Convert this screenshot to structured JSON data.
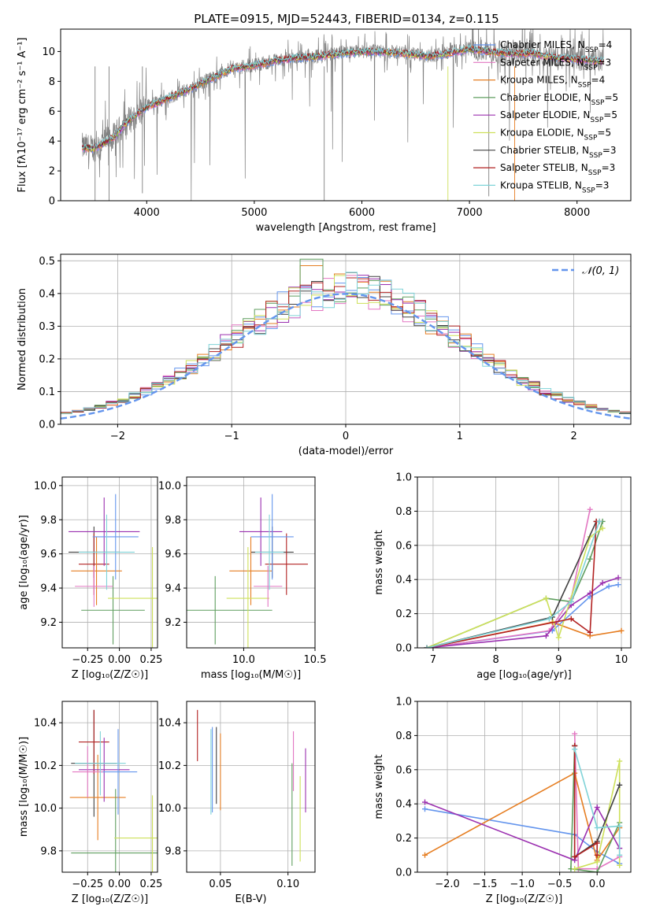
{
  "figure_title": "PLATE=0915, MJD=52443, FIBERID=0134, z=0.115",
  "colors": {
    "observed": "#808080",
    "chabrier_miles": "#6495ed",
    "salpeter_miles": "#e377c2",
    "kroupa_miles": "#e67e22",
    "chabrier_elodie": "#5f9e5f",
    "salpeter_elodie": "#9b30b0",
    "kroupa_elodie": "#cde05a",
    "chabrier_stelib": "#404040",
    "salpeter_stelib": "#b22222",
    "kroupa_stelib": "#7fd3d8"
  },
  "chart_data": [
    {
      "id": "spectrum",
      "type": "line",
      "xlabel": "wavelength [Angstrom, rest frame]",
      "ylabel": "Flux [fλ10⁻¹⁷ erg cm⁻² s⁻¹ A⁻¹]",
      "xlim": [
        3200,
        8500
      ],
      "ylim": [
        0,
        11.5
      ],
      "xticks": [
        "4000",
        "5000",
        "6000",
        "7000",
        "8000"
      ],
      "yticks": [
        "0",
        "2",
        "4",
        "6",
        "8",
        "10"
      ],
      "grid": false,
      "legend_position": "top-right",
      "legend": [
        "Chabrier MILES, N_SSP=4",
        "Salpeter MILES, N_SSP=3",
        "Kroupa MILES, N_SSP=4",
        "Chabrier ELODIE, N_SSP=5",
        "Salpeter ELODIE, N_SSP=5",
        "Kroupa ELODIE, N_SSP=5",
        "Chabrier STELIB, N_SSP=3",
        "Salpeter STELIB, N_SSP=3",
        "Kroupa STELIB, N_SSP=3"
      ],
      "continuum": {
        "x": [
          3400,
          3500,
          3600,
          3700,
          3800,
          3900,
          4000,
          4200,
          4400,
          4600,
          4800,
          5000,
          5200,
          5400,
          5600,
          5800,
          6000,
          6200,
          6400,
          6600,
          6800,
          7000,
          7200,
          7400,
          7600,
          7800,
          8000,
          8200
        ],
        "y": [
          3.6,
          3.5,
          3.9,
          4.3,
          5.2,
          5.8,
          6.3,
          6.9,
          7.5,
          8.2,
          8.9,
          9.1,
          9.4,
          9.6,
          9.7,
          9.9,
          10.0,
          10.0,
          9.9,
          9.7,
          9.9,
          10.2,
          10.0,
          9.9,
          9.9,
          9.6,
          9.5,
          9.4
        ]
      }
    },
    {
      "id": "residuals",
      "type": "line",
      "xlabel": "(data-model)/error",
      "ylabel": "Normed distribution",
      "xlim": [
        -2.5,
        2.5
      ],
      "ylim": [
        0,
        0.52
      ],
      "xticks": [
        "−2",
        "−1",
        "0",
        "1",
        "2"
      ],
      "yticks": [
        "0.0",
        "0.1",
        "0.2",
        "0.3",
        "0.4",
        "0.5"
      ],
      "grid": true,
      "legend_position": "top-right",
      "legend": [
        "𝒩(0, 1)"
      ],
      "histogram_bin_width": 0.1,
      "peak_values": [
        0.49,
        0.47,
        0.44,
        0.43,
        0.41,
        0.4
      ]
    },
    {
      "id": "age-vs-Z",
      "type": "scatter",
      "xlabel": "Z [log₁₀(Z/Z☉)]",
      "ylabel": "age  [log₁₀(age/yr)]",
      "xlim": [
        -0.45,
        0.3
      ],
      "ylim": [
        9.05,
        10.05
      ],
      "xticks": [
        "−0.25",
        "0.00",
        "0.25"
      ],
      "yticks": [
        "9.2",
        "9.4",
        "9.6",
        "9.8",
        "10.0"
      ],
      "grid": true,
      "points": [
        {
          "x": -0.2,
          "xerr": 0.2,
          "y": 9.61,
          "yerr": 0.15,
          "series": "chabrier_stelib"
        },
        {
          "x": -0.2,
          "xerr": 0.12,
          "y": 9.54,
          "yerr": 0.18,
          "series": "salpeter_stelib"
        },
        {
          "x": -0.18,
          "xerr": 0.2,
          "y": 9.5,
          "yerr": 0.2,
          "series": "kroupa_miles"
        },
        {
          "x": -0.12,
          "xerr": 0.28,
          "y": 9.73,
          "yerr": 0.2,
          "series": "salpeter_elodie"
        },
        {
          "x": -0.05,
          "xerr": 0.25,
          "y": 9.27,
          "yerr": 0.2,
          "series": "chabrier_elodie"
        },
        {
          "x": -0.03,
          "xerr": 0.18,
          "y": 9.7,
          "yerr": 0.25,
          "series": "chabrier_miles"
        },
        {
          "x": 0.26,
          "xerr": 0.35,
          "y": 9.34,
          "yerr": 0.3,
          "series": "kroupa_elodie"
        },
        {
          "x": -0.2,
          "xerr": 0.15,
          "y": 9.41,
          "yerr": 0.12,
          "series": "salpeter_miles"
        },
        {
          "x": -0.1,
          "xerr": 0.22,
          "y": 9.61,
          "yerr": 0.22,
          "series": "kroupa_stelib"
        }
      ]
    },
    {
      "id": "age-vs-mass",
      "type": "scatter",
      "xlabel": "mass [log₁₀(M/M☉)]",
      "ylabel": "",
      "xlim": [
        9.6,
        10.5
      ],
      "ylim": [
        9.05,
        10.05
      ],
      "xticks": [
        "10.0",
        "10.5"
      ],
      "yticks": [
        "9.2",
        "9.4",
        "9.6",
        "9.8",
        "10.0"
      ],
      "grid": true,
      "points": [
        {
          "x": 10.2,
          "xerr": 0.15,
          "y": 9.61,
          "yerr": 0.15,
          "series": "chabrier_stelib"
        },
        {
          "x": 10.3,
          "xerr": 0.15,
          "y": 9.54,
          "yerr": 0.18,
          "series": "salpeter_stelib"
        },
        {
          "x": 10.05,
          "xerr": 0.15,
          "y": 9.5,
          "yerr": 0.2,
          "series": "kroupa_miles"
        },
        {
          "x": 10.12,
          "xerr": 0.15,
          "y": 9.73,
          "yerr": 0.2,
          "series": "salpeter_elodie"
        },
        {
          "x": 9.8,
          "xerr": 0.4,
          "y": 9.27,
          "yerr": 0.2,
          "series": "chabrier_elodie"
        },
        {
          "x": 10.2,
          "xerr": 0.15,
          "y": 9.7,
          "yerr": 0.25,
          "series": "chabrier_miles"
        },
        {
          "x": 10.03,
          "xerr": 0.15,
          "y": 9.34,
          "yerr": 0.3,
          "series": "kroupa_elodie"
        },
        {
          "x": 10.17,
          "xerr": 0.1,
          "y": 9.41,
          "yerr": 0.12,
          "series": "salpeter_miles"
        },
        {
          "x": 10.18,
          "xerr": 0.1,
          "y": 9.61,
          "yerr": 0.22,
          "series": "kroupa_stelib"
        }
      ]
    },
    {
      "id": "massweight-vs-age",
      "type": "line",
      "xlabel": "age  [log₁₀(age/yr)]",
      "ylabel": "mass weight",
      "xlim": [
        6.75,
        10.15
      ],
      "ylim": [
        0,
        1.0
      ],
      "xticks": [
        "7",
        "8",
        "9",
        "10"
      ],
      "yticks": [
        "0.0",
        "0.2",
        "0.4",
        "0.6",
        "0.8",
        "1.0"
      ],
      "grid": true,
      "series": [
        {
          "key": "chabrier_miles",
          "x": [
            6.9,
            8.9,
            9.5,
            9.8,
            9.95
          ],
          "y": [
            0.0,
            0.1,
            0.3,
            0.36,
            0.37
          ]
        },
        {
          "key": "salpeter_miles",
          "x": [
            6.9,
            8.85,
            9.2,
            9.5
          ],
          "y": [
            0.0,
            0.1,
            0.29,
            0.81
          ]
        },
        {
          "key": "kroupa_miles",
          "x": [
            6.9,
            8.9,
            9.5,
            10.0
          ],
          "y": [
            0.0,
            0.15,
            0.07,
            0.1
          ]
        },
        {
          "key": "chabrier_elodie",
          "x": [
            6.9,
            8.8,
            9.2,
            9.5,
            9.7
          ],
          "y": [
            0.0,
            0.29,
            0.27,
            0.52,
            0.74
          ]
        },
        {
          "key": "salpeter_elodie",
          "x": [
            6.9,
            8.8,
            9.2,
            9.5,
            9.7,
            9.95
          ],
          "y": [
            0.0,
            0.07,
            0.25,
            0.32,
            0.38,
            0.41
          ]
        },
        {
          "key": "kroupa_elodie",
          "x": [
            6.9,
            8.8,
            9.0,
            9.5,
            9.7
          ],
          "y": [
            0.0,
            0.29,
            0.06,
            0.65,
            0.7
          ]
        },
        {
          "key": "chabrier_stelib",
          "x": [
            6.9,
            8.9,
            9.6
          ],
          "y": [
            0.0,
            0.18,
            0.74
          ]
        },
        {
          "key": "salpeter_stelib",
          "x": [
            6.9,
            9.2,
            9.5,
            9.6,
            9.65
          ],
          "y": [
            0.0,
            0.17,
            0.09,
            0.74,
            0.74
          ]
        },
        {
          "key": "kroupa_stelib",
          "x": [
            6.9,
            8.85,
            9.2,
            9.65
          ],
          "y": [
            0.0,
            0.17,
            0.27,
            0.74
          ]
        }
      ]
    },
    {
      "id": "mass-vs-Z",
      "type": "scatter",
      "xlabel": "Z [log₁₀(Z/Z☉)]",
      "ylabel": "mass [log₁₀(M/M☉)]",
      "xlim": [
        -0.45,
        0.3
      ],
      "ylim": [
        9.7,
        10.5
      ],
      "xticks": [
        "−0.25",
        "0.00",
        "0.25"
      ],
      "yticks": [
        "9.8",
        "10.0",
        "10.2",
        "10.4"
      ],
      "grid": true,
      "points": [
        {
          "x": -0.2,
          "xerr": 0.18,
          "y": 10.21,
          "yerr": 0.25,
          "series": "chabrier_stelib"
        },
        {
          "x": -0.2,
          "xerr": 0.12,
          "y": 10.31,
          "yerr": 0.15,
          "series": "salpeter_stelib"
        },
        {
          "x": -0.17,
          "xerr": 0.22,
          "y": 10.05,
          "yerr": 0.2,
          "series": "kroupa_miles"
        },
        {
          "x": -0.12,
          "xerr": 0.2,
          "y": 10.18,
          "yerr": 0.15,
          "series": "salpeter_elodie"
        },
        {
          "x": -0.03,
          "xerr": 0.35,
          "y": 9.79,
          "yerr": 0.3,
          "series": "chabrier_elodie"
        },
        {
          "x": -0.01,
          "xerr": 0.15,
          "y": 10.17,
          "yerr": 0.2,
          "series": "chabrier_miles"
        },
        {
          "x": 0.26,
          "xerr": 0.3,
          "y": 9.86,
          "yerr": 0.2,
          "series": "kroupa_elodie"
        },
        {
          "x": -0.25,
          "xerr": 0.12,
          "y": 10.17,
          "yerr": 0.12,
          "series": "salpeter_miles"
        },
        {
          "x": -0.15,
          "xerr": 0.2,
          "y": 10.21,
          "yerr": 0.15,
          "series": "kroupa_stelib"
        }
      ]
    },
    {
      "id": "mass-vs-ebv",
      "type": "scatter",
      "xlabel": "E(B-V)",
      "ylabel": "",
      "xlim": [
        0.025,
        0.12
      ],
      "ylim": [
        9.7,
        10.5
      ],
      "xticks": [
        "0.05",
        "0.10"
      ],
      "yticks": [
        "9.8",
        "10.0",
        "10.2",
        "10.4"
      ],
      "grid": true,
      "points": [
        {
          "x": 0.047,
          "y": 10.2,
          "yerr": 0.18,
          "series": "chabrier_stelib"
        },
        {
          "x": 0.033,
          "y": 10.34,
          "yerr": 0.12,
          "series": "salpeter_stelib"
        },
        {
          "x": 0.05,
          "y": 10.17,
          "yerr": 0.18,
          "series": "kroupa_miles"
        },
        {
          "x": 0.113,
          "y": 10.13,
          "yerr": 0.15,
          "series": "salpeter_elodie"
        },
        {
          "x": 0.103,
          "y": 9.97,
          "yerr": 0.24,
          "series": "chabrier_elodie"
        },
        {
          "x": 0.044,
          "y": 10.18,
          "yerr": 0.2,
          "series": "chabrier_miles"
        },
        {
          "x": 0.109,
          "y": 9.95,
          "yerr": 0.2,
          "series": "kroupa_elodie"
        },
        {
          "x": 0.104,
          "y": 10.22,
          "yerr": 0.14,
          "series": "salpeter_miles"
        },
        {
          "x": 0.043,
          "y": 10.17,
          "yerr": 0.2,
          "series": "kroupa_stelib"
        }
      ]
    },
    {
      "id": "massweight-vs-Z",
      "type": "line",
      "xlabel": "Z [log₁₀(Z/Z☉)]",
      "ylabel": "mass weight",
      "xlim": [
        -2.4,
        0.45
      ],
      "ylim": [
        0,
        1.0
      ],
      "xticks": [
        "−2.0",
        "−1.5",
        "−1.0",
        "−0.5",
        "0.0"
      ],
      "yticks": [
        "0.0",
        "0.2",
        "0.4",
        "0.6",
        "0.8",
        "1.0"
      ],
      "grid": true,
      "series": [
        {
          "key": "chabrier_miles",
          "x": [
            -2.3,
            -0.3,
            0.0,
            0.3
          ],
          "y": [
            0.37,
            0.22,
            0.12,
            0.05
          ]
        },
        {
          "key": "salpeter_miles",
          "x": [
            -0.3,
            -0.25,
            0.0,
            0.3
          ],
          "y": [
            0.81,
            0.02,
            0.02,
            0.09
          ]
        },
        {
          "key": "kroupa_miles",
          "x": [
            -2.3,
            -0.3,
            0.0,
            0.3
          ],
          "y": [
            0.1,
            0.58,
            0.07,
            0.26
          ]
        },
        {
          "key": "chabrier_elodie",
          "x": [
            -0.3,
            -0.35,
            0.0,
            0.3
          ],
          "y": [
            0.74,
            0.02,
            0.0,
            0.29
          ]
        },
        {
          "key": "salpeter_elodie",
          "x": [
            -2.3,
            -0.3,
            0.0,
            0.3
          ],
          "y": [
            0.41,
            0.07,
            0.38,
            0.14
          ]
        },
        {
          "key": "kroupa_elodie",
          "x": [
            -0.3,
            0.0,
            0.3,
            0.3
          ],
          "y": [
            0.02,
            0.06,
            0.65,
            0.04
          ]
        },
        {
          "key": "chabrier_stelib",
          "x": [
            -0.3,
            -0.3,
            0.0,
            0.3
          ],
          "y": [
            0.74,
            0.09,
            0.18,
            0.51
          ]
        },
        {
          "key": "salpeter_stelib",
          "x": [
            -0.3,
            -0.3,
            0.0,
            0.0
          ],
          "y": [
            0.74,
            0.09,
            0.17,
            0.1
          ]
        },
        {
          "key": "kroupa_stelib",
          "x": [
            -0.3,
            0.0,
            0.3,
            0.3
          ],
          "y": [
            0.72,
            0.26,
            0.27,
            0.1
          ]
        }
      ]
    }
  ]
}
